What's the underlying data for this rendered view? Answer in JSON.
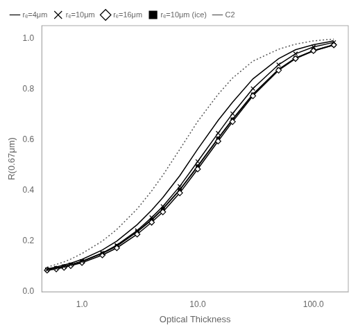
{
  "chart_data": {
    "type": "line",
    "xlabel": "Optical Thickness",
    "ylabel": "R(0.67μm)",
    "log": "x",
    "grid": false,
    "legend": "upper left",
    "xlim": [
      0.45,
      200.0
    ],
    "ylim": [
      0.0,
      1.05
    ],
    "xticks": [
      {
        "value": 1.0,
        "label": "1.0"
      },
      {
        "value": 10.0,
        "label": "10.0"
      },
      {
        "value": 100.0,
        "label": "100.0"
      }
    ],
    "yticks": [
      {
        "value": 0.0,
        "label": "0.0"
      },
      0.2,
      0.4,
      0.6,
      0.8,
      {
        "value": 1.0,
        "label": "1.0"
      }
    ],
    "x": [
      0.5,
      0.6,
      0.7,
      0.8,
      1.0,
      1.5,
      2.0,
      3.0,
      4.0,
      5.0,
      7.0,
      10.0,
      15.0,
      20.0,
      30.0,
      50.0,
      70.0,
      100.0,
      150.0
    ],
    "series": [
      {
        "name": "rₑ=4μm",
        "color": "#000000",
        "marker": "none",
        "line_style": "solid",
        "values": [
          0.09,
          0.098,
          0.106,
          0.113,
          0.128,
          0.165,
          0.2,
          0.265,
          0.322,
          0.372,
          0.458,
          0.563,
          0.676,
          0.748,
          0.84,
          0.92,
          0.955,
          0.975,
          0.99
        ]
      },
      {
        "name": "rₑ=10μm",
        "color": "#000000",
        "marker": "x",
        "line_style": "solid",
        "values": [
          0.087,
          0.093,
          0.1,
          0.107,
          0.12,
          0.153,
          0.184,
          0.242,
          0.293,
          0.337,
          0.416,
          0.514,
          0.626,
          0.703,
          0.802,
          0.896,
          0.939,
          0.966,
          0.984
        ]
      },
      {
        "name": "rₑ=16μm",
        "color": "#000000",
        "marker": "diamond",
        "line_style": "solid",
        "values": [
          0.085,
          0.09,
          0.096,
          0.103,
          0.115,
          0.145,
          0.173,
          0.227,
          0.274,
          0.315,
          0.39,
          0.484,
          0.594,
          0.671,
          0.773,
          0.874,
          0.92,
          0.951,
          0.974
        ]
      },
      {
        "name": "rₑ=10μm (ice)",
        "color": "#000000",
        "marker": "square",
        "line_style": "solid",
        "values": [
          0.088,
          0.094,
          0.1,
          0.107,
          0.12,
          0.152,
          0.181,
          0.237,
          0.284,
          0.327,
          0.402,
          0.495,
          0.605,
          0.68,
          0.779,
          0.877,
          0.922,
          0.951,
          0.974
        ]
      },
      {
        "name": "C2",
        "color": "#555555",
        "marker": "none",
        "line_style": "dotted",
        "values": [
          0.097,
          0.108,
          0.118,
          0.129,
          0.151,
          0.2,
          0.246,
          0.327,
          0.398,
          0.46,
          0.562,
          0.672,
          0.779,
          0.843,
          0.91,
          0.957,
          0.977,
          0.99,
          0.997
        ]
      }
    ]
  }
}
